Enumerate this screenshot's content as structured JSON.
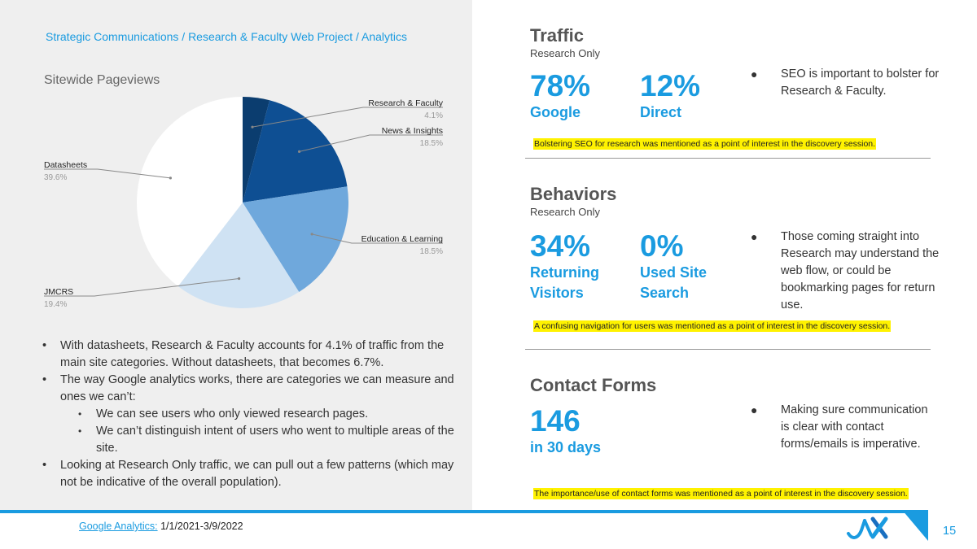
{
  "breadcrumb": "Strategic Communications / Research & Faculty Web Project / Analytics",
  "chart_data": {
    "type": "pie",
    "title": "Sitewide Pageviews",
    "slices": [
      {
        "label": "Research & Faculty",
        "value": 4.1,
        "display": "4.1%",
        "color": "#0b3d6f"
      },
      {
        "label": "News & Insights",
        "value": 18.5,
        "display": "18.5%",
        "color": "#0e4f93"
      },
      {
        "label": "Education & Learning",
        "value": 18.5,
        "display": "18.5%",
        "color": "#6fa8dc"
      },
      {
        "label": "JMCRS",
        "value": 19.4,
        "display": "19.4%",
        "color": "#cfe2f3"
      },
      {
        "label": "Datasheets",
        "value": 39.6,
        "display": "39.6%",
        "color": "#ffffff"
      }
    ]
  },
  "notes": [
    {
      "level": 1,
      "text": "With datasheets, Research & Faculty accounts for 4.1% of traffic from the main site categories. Without datasheets, that becomes 6.7%."
    },
    {
      "level": 1,
      "text": "The way Google analytics works, there are categories we can measure and ones we can’t:"
    },
    {
      "level": 2,
      "text": "We can see users who only viewed research pages."
    },
    {
      "level": 2,
      "text": "We can’t distinguish intent of users who went to multiple areas of the site."
    },
    {
      "level": 1,
      "text": "Looking at Research Only traffic, we can pull out a few patterns (which may not be indicative of the overall population)."
    }
  ],
  "bullet_glyph": "•",
  "right_bullet_glyph": "●",
  "sections": {
    "traffic": {
      "title": "Traffic",
      "subtitle": "Research Only",
      "metric1": {
        "value": "78%",
        "label": "Google"
      },
      "metric2": {
        "value": "12%",
        "label": "Direct"
      },
      "bullet": "SEO is important to bolster for Research & Faculty.",
      "highlight": "Bolstering SEO for research was mentioned as a point of interest in the discovery session."
    },
    "behaviors": {
      "title": "Behaviors",
      "subtitle": "Research Only",
      "metric1": {
        "value": "34%",
        "label_line1": "Returning",
        "label_line2": "Visitors"
      },
      "metric2": {
        "value": "0%",
        "label_line1": "Used Site",
        "label_line2": "Search"
      },
      "bullet": "Those coming straight into Research may understand the web flow, or could be bookmarking pages for return use.",
      "highlight": "A confusing navigation for users was mentioned as a point of interest in the discovery session."
    },
    "contact": {
      "title": "Contact Forms",
      "metric1": {
        "value": "146",
        "label": "in 30 days"
      },
      "bullet": "Making sure communication is clear with contact forms/emails is imperative.",
      "highlight": "The importance/use of contact forms was mentioned as a point of interest in the discovery session."
    }
  },
  "footer": {
    "source_link": "Google Analytics:",
    "source_range": " 1/1/2021-3/9/2022",
    "page_number": "15",
    "logo_icon": "jax-logo-icon",
    "accent": "#1a9be0"
  }
}
